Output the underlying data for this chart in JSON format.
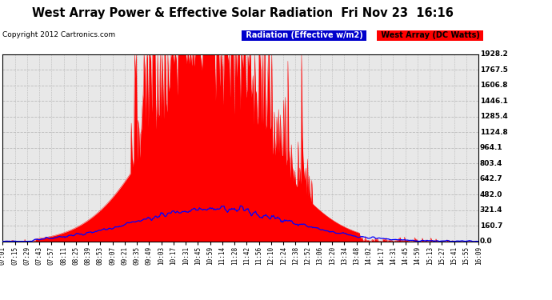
{
  "title": "West Array Power & Effective Solar Radiation  Fri Nov 23  16:16",
  "copyright": "Copyright 2012 Cartronics.com",
  "legend1": "Radiation (Effective w/m2)",
  "legend2": "West Array (DC Watts)",
  "background_color": "#ffffff",
  "plot_bg_color": "#e8e8e8",
  "ytick_labels": [
    "0.0",
    "160.7",
    "321.4",
    "482.0",
    "642.7",
    "803.4",
    "964.1",
    "1124.8",
    "1285.4",
    "1446.1",
    "1606.8",
    "1767.5",
    "1928.2"
  ],
  "ytick_values": [
    0.0,
    160.7,
    321.4,
    482.0,
    642.7,
    803.4,
    964.1,
    1124.8,
    1285.4,
    1446.1,
    1606.8,
    1767.5,
    1928.2
  ],
  "ymax": 1928.2,
  "ymin": 0.0,
  "grid_color": "#bbbbbb",
  "bar_color": "#ff0000",
  "line_color": "#0000ff",
  "xtick_labels": [
    "07:01",
    "07:15",
    "07:29",
    "07:43",
    "07:57",
    "08:11",
    "08:25",
    "08:39",
    "08:53",
    "09:07",
    "09:21",
    "09:35",
    "09:49",
    "10:03",
    "10:17",
    "10:31",
    "10:45",
    "10:59",
    "11:14",
    "11:28",
    "11:42",
    "11:56",
    "12:10",
    "12:24",
    "12:38",
    "12:52",
    "13:06",
    "13:20",
    "13:34",
    "13:48",
    "14:02",
    "14:17",
    "14:31",
    "14:45",
    "14:59",
    "15:13",
    "15:27",
    "15:41",
    "15:55",
    "16:09"
  ]
}
